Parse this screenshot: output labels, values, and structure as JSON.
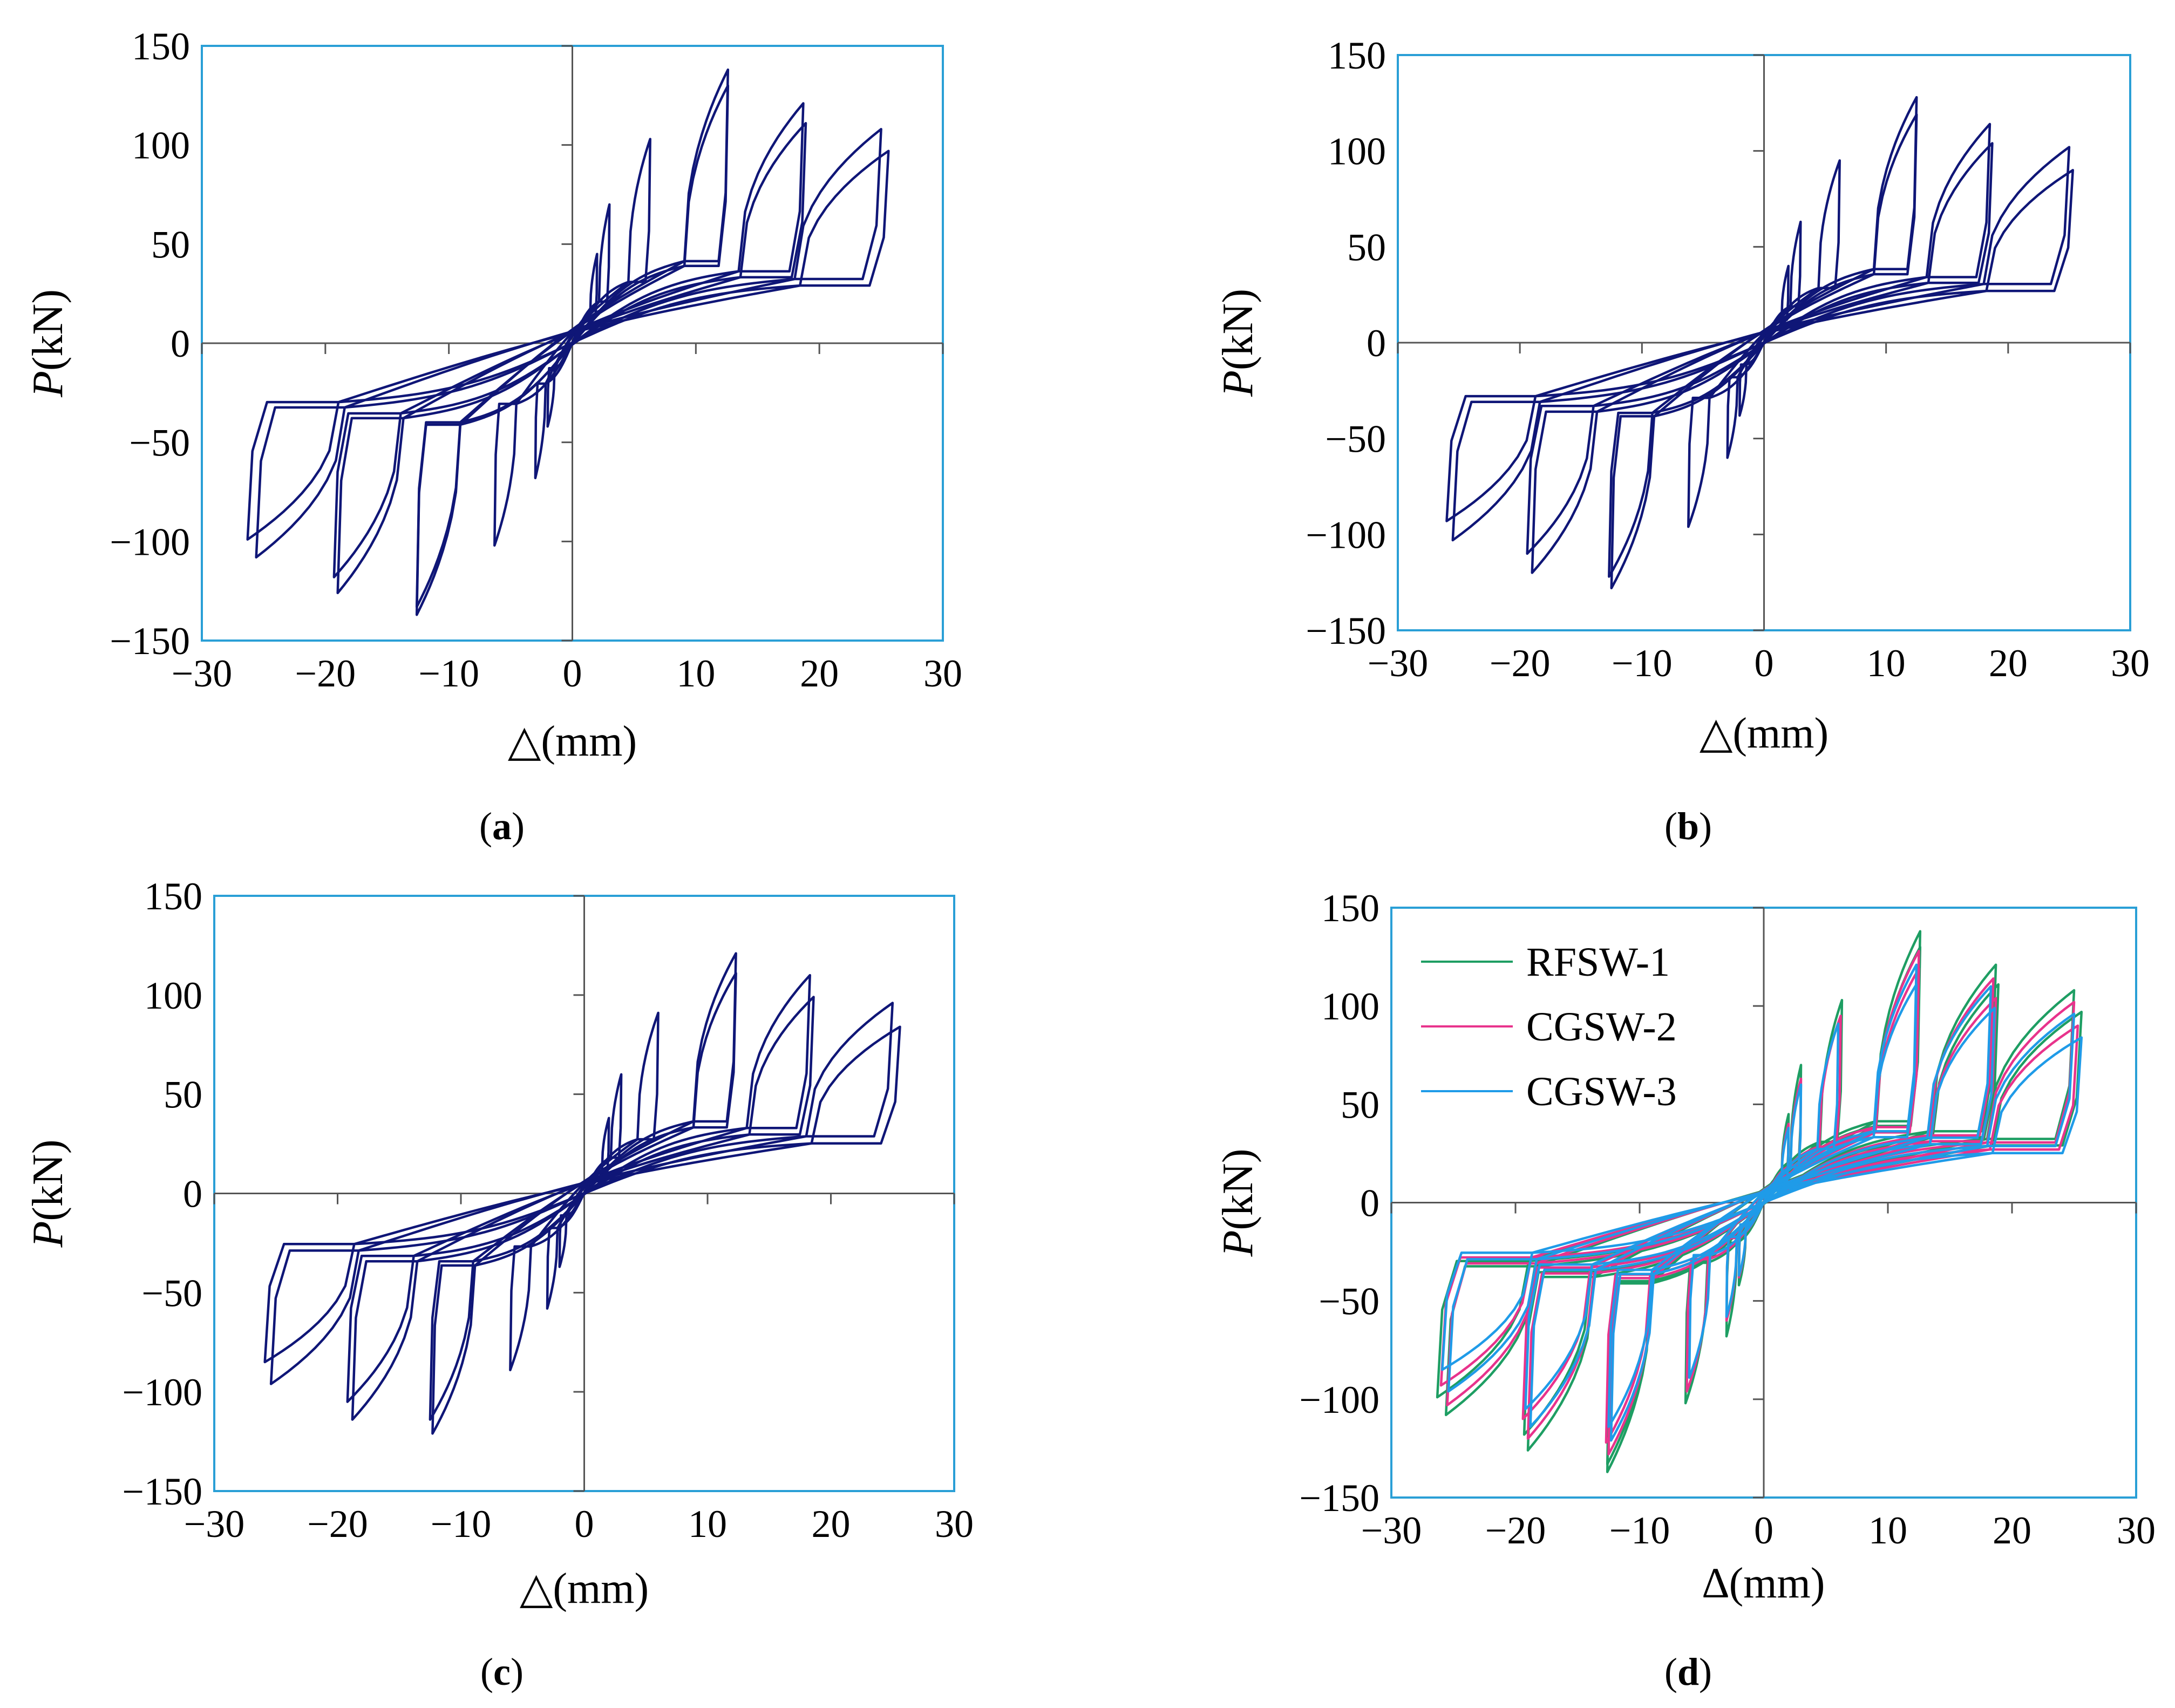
{
  "figure": {
    "panels": [
      {
        "id": "a",
        "caption_letter": "a"
      },
      {
        "id": "b",
        "caption_letter": "b"
      },
      {
        "id": "c",
        "caption_letter": "c"
      },
      {
        "id": "d",
        "caption_letter": "d"
      }
    ]
  },
  "colors": {
    "frame": "#2a9fd6",
    "axis": "#555555",
    "single_series": "#0f1677",
    "RFSW-1": "#1e9e63",
    "CGSW-2": "#e8338c",
    "CGSW-3": "#1f9be8"
  },
  "chart_data": [
    {
      "type": "line",
      "panel": "a",
      "title": "",
      "xlabel_symbol": "△",
      "xlabel_unit": "(mm)",
      "ylabel_symbol": "P",
      "ylabel_unit": "(kN)",
      "xlim": [
        -30,
        30
      ],
      "ylim": [
        -150,
        150
      ],
      "xticks": [
        -30,
        -20,
        -10,
        0,
        10,
        20,
        30
      ],
      "yticks": [
        -150,
        -100,
        -50,
        0,
        50,
        100,
        150
      ],
      "xtick_labels": [
        "−30",
        "−20",
        "−10",
        "0",
        "10",
        "20",
        "30"
      ],
      "ytick_labels": [
        "−150",
        "−100",
        "−50",
        "0",
        "50",
        "100",
        "150"
      ],
      "caption": "(a)",
      "series": [
        {
          "name": "RFSW-1",
          "loops": [
            {
              "dmax": 2.0,
              "pmax": 45,
              "dmin": -2.0,
              "pmin": -42
            },
            {
              "dmax": 3.0,
              "pmax": 70,
              "dmin": -3.0,
              "pmin": -68
            },
            {
              "dmax": 6.3,
              "pmax": 103,
              "dmin": -6.3,
              "pmin": -102
            },
            {
              "dmax": 12.6,
              "pmax": 138,
              "dmin": -12.6,
              "pmin": -137
            },
            {
              "dmax": 12.6,
              "pmax": 130,
              "dmin": -12.6,
              "pmin": -133
            },
            {
              "dmax": 18.7,
              "pmax": 121,
              "dmin": -19.0,
              "pmin": -126
            },
            {
              "dmax": 18.9,
              "pmax": 111,
              "dmin": -19.3,
              "pmin": -118
            },
            {
              "dmax": 25.0,
              "pmax": 108,
              "dmin": -25.6,
              "pmin": -108
            },
            {
              "dmax": 25.6,
              "pmax": 97,
              "dmin": -26.3,
              "pmin": -99
            }
          ]
        }
      ]
    },
    {
      "type": "line",
      "panel": "b",
      "title": "",
      "xlabel_symbol": "△",
      "xlabel_unit": "(mm)",
      "ylabel_symbol": "P",
      "ylabel_unit": "(kN)",
      "xlim": [
        -30,
        30
      ],
      "ylim": [
        -150,
        150
      ],
      "xticks": [
        -30,
        -20,
        -10,
        0,
        10,
        20,
        30
      ],
      "yticks": [
        -150,
        -100,
        -50,
        0,
        50,
        100,
        150
      ],
      "xtick_labels": [
        "−30",
        "−20",
        "−10",
        "0",
        "10",
        "20",
        "30"
      ],
      "ytick_labels": [
        "−150",
        "−100",
        "−50",
        "0",
        "50",
        "100",
        "150"
      ],
      "caption": "(b)",
      "series": [
        {
          "name": "CGSW-2",
          "loops": [
            {
              "dmax": 2.0,
              "pmax": 40,
              "dmin": -2.0,
              "pmin": -38
            },
            {
              "dmax": 3.0,
              "pmax": 63,
              "dmin": -3.0,
              "pmin": -60
            },
            {
              "dmax": 6.2,
              "pmax": 95,
              "dmin": -6.2,
              "pmin": -96
            },
            {
              "dmax": 12.5,
              "pmax": 128,
              "dmin": -12.5,
              "pmin": -128
            },
            {
              "dmax": 12.5,
              "pmax": 119,
              "dmin": -12.7,
              "pmin": -122
            },
            {
              "dmax": 18.5,
              "pmax": 114,
              "dmin": -19.0,
              "pmin": -120
            },
            {
              "dmax": 18.7,
              "pmax": 104,
              "dmin": -19.4,
              "pmin": -110
            },
            {
              "dmax": 25.0,
              "pmax": 102,
              "dmin": -25.5,
              "pmin": -103
            },
            {
              "dmax": 25.3,
              "pmax": 90,
              "dmin": -26.0,
              "pmin": -93
            }
          ]
        }
      ]
    },
    {
      "type": "line",
      "panel": "c",
      "title": "",
      "xlabel_symbol": "△",
      "xlabel_unit": "(mm)",
      "ylabel_symbol": "P",
      "ylabel_unit": "(kN)",
      "xlim": [
        -30,
        30
      ],
      "ylim": [
        -150,
        150
      ],
      "xticks": [
        -30,
        -20,
        -10,
        0,
        10,
        20,
        30
      ],
      "yticks": [
        -150,
        -100,
        -50,
        0,
        50,
        100,
        150
      ],
      "xtick_labels": [
        "−30",
        "−20",
        "−10",
        "0",
        "10",
        "20",
        "30"
      ],
      "ytick_labels": [
        "−150",
        "−100",
        "−50",
        "0",
        "50",
        "100",
        "150"
      ],
      "caption": "(c)",
      "series": [
        {
          "name": "CGSW-3",
          "loops": [
            {
              "dmax": 2.0,
              "pmax": 38,
              "dmin": -2.0,
              "pmin": -37
            },
            {
              "dmax": 3.0,
              "pmax": 60,
              "dmin": -3.0,
              "pmin": -58
            },
            {
              "dmax": 6.0,
              "pmax": 91,
              "dmin": -6.0,
              "pmin": -89
            },
            {
              "dmax": 12.3,
              "pmax": 121,
              "dmin": -12.3,
              "pmin": -121
            },
            {
              "dmax": 12.3,
              "pmax": 111,
              "dmin": -12.5,
              "pmin": -114
            },
            {
              "dmax": 18.3,
              "pmax": 110,
              "dmin": -18.8,
              "pmin": -114
            },
            {
              "dmax": 18.6,
              "pmax": 99,
              "dmin": -19.2,
              "pmin": -105
            },
            {
              "dmax": 25.0,
              "pmax": 96,
              "dmin": -25.4,
              "pmin": -96
            },
            {
              "dmax": 25.6,
              "pmax": 84,
              "dmin": -25.9,
              "pmin": -85
            }
          ]
        }
      ]
    },
    {
      "type": "line",
      "panel": "d",
      "title": "",
      "xlabel_symbol": "∆",
      "xlabel_unit": "(mm)",
      "ylabel_symbol": "P",
      "ylabel_unit": "(kN)",
      "xlim": [
        -30,
        30
      ],
      "ylim": [
        -150,
        150
      ],
      "xticks": [
        -30,
        -20,
        -10,
        0,
        10,
        20,
        30
      ],
      "yticks": [
        -150,
        -100,
        -50,
        0,
        50,
        100,
        150
      ],
      "xtick_labels": [
        "−30",
        "−20",
        "−10",
        "0",
        "10",
        "20",
        "30"
      ],
      "ytick_labels": [
        "−150",
        "−100",
        "−50",
        "0",
        "50",
        "100",
        "150"
      ],
      "caption": "(d)",
      "legend": {
        "position": "top-left",
        "entries": [
          "RFSW-1",
          "CGSW-2",
          "CGSW-3"
        ]
      },
      "series_refs": [
        "a",
        "b",
        "c"
      ]
    }
  ]
}
